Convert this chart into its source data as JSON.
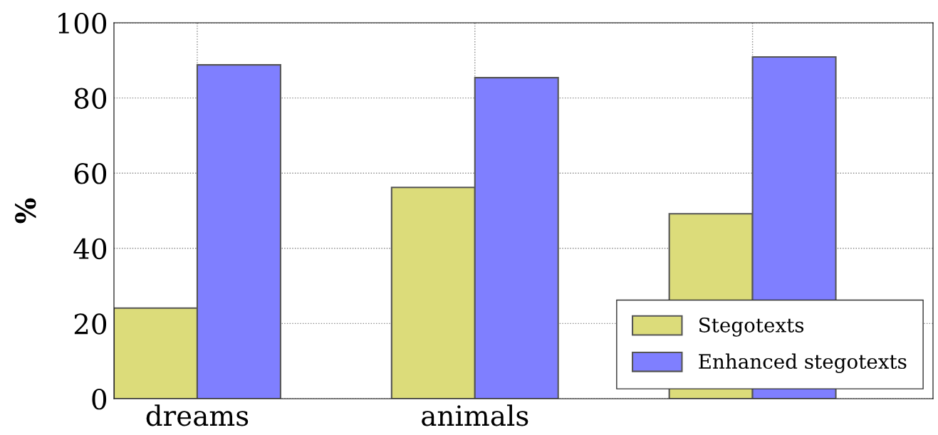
{
  "chart_data": {
    "type": "bar",
    "ylabel": "%",
    "categories": [
      "dreams",
      "animals",
      null
    ],
    "series": [
      {
        "name": "Stegotexts",
        "color": "#dcdc7a",
        "values": [
          24.1,
          56.2,
          49.2
        ]
      },
      {
        "name": "Enhanced stegotexts",
        "color": "#7f7fff",
        "values": [
          88.8,
          85.4,
          90.9
        ]
      }
    ],
    "ylim": [
      0,
      100
    ],
    "yticks": [
      0,
      20,
      40,
      60,
      80,
      100
    ],
    "grid": true,
    "legend": "bottom right"
  }
}
